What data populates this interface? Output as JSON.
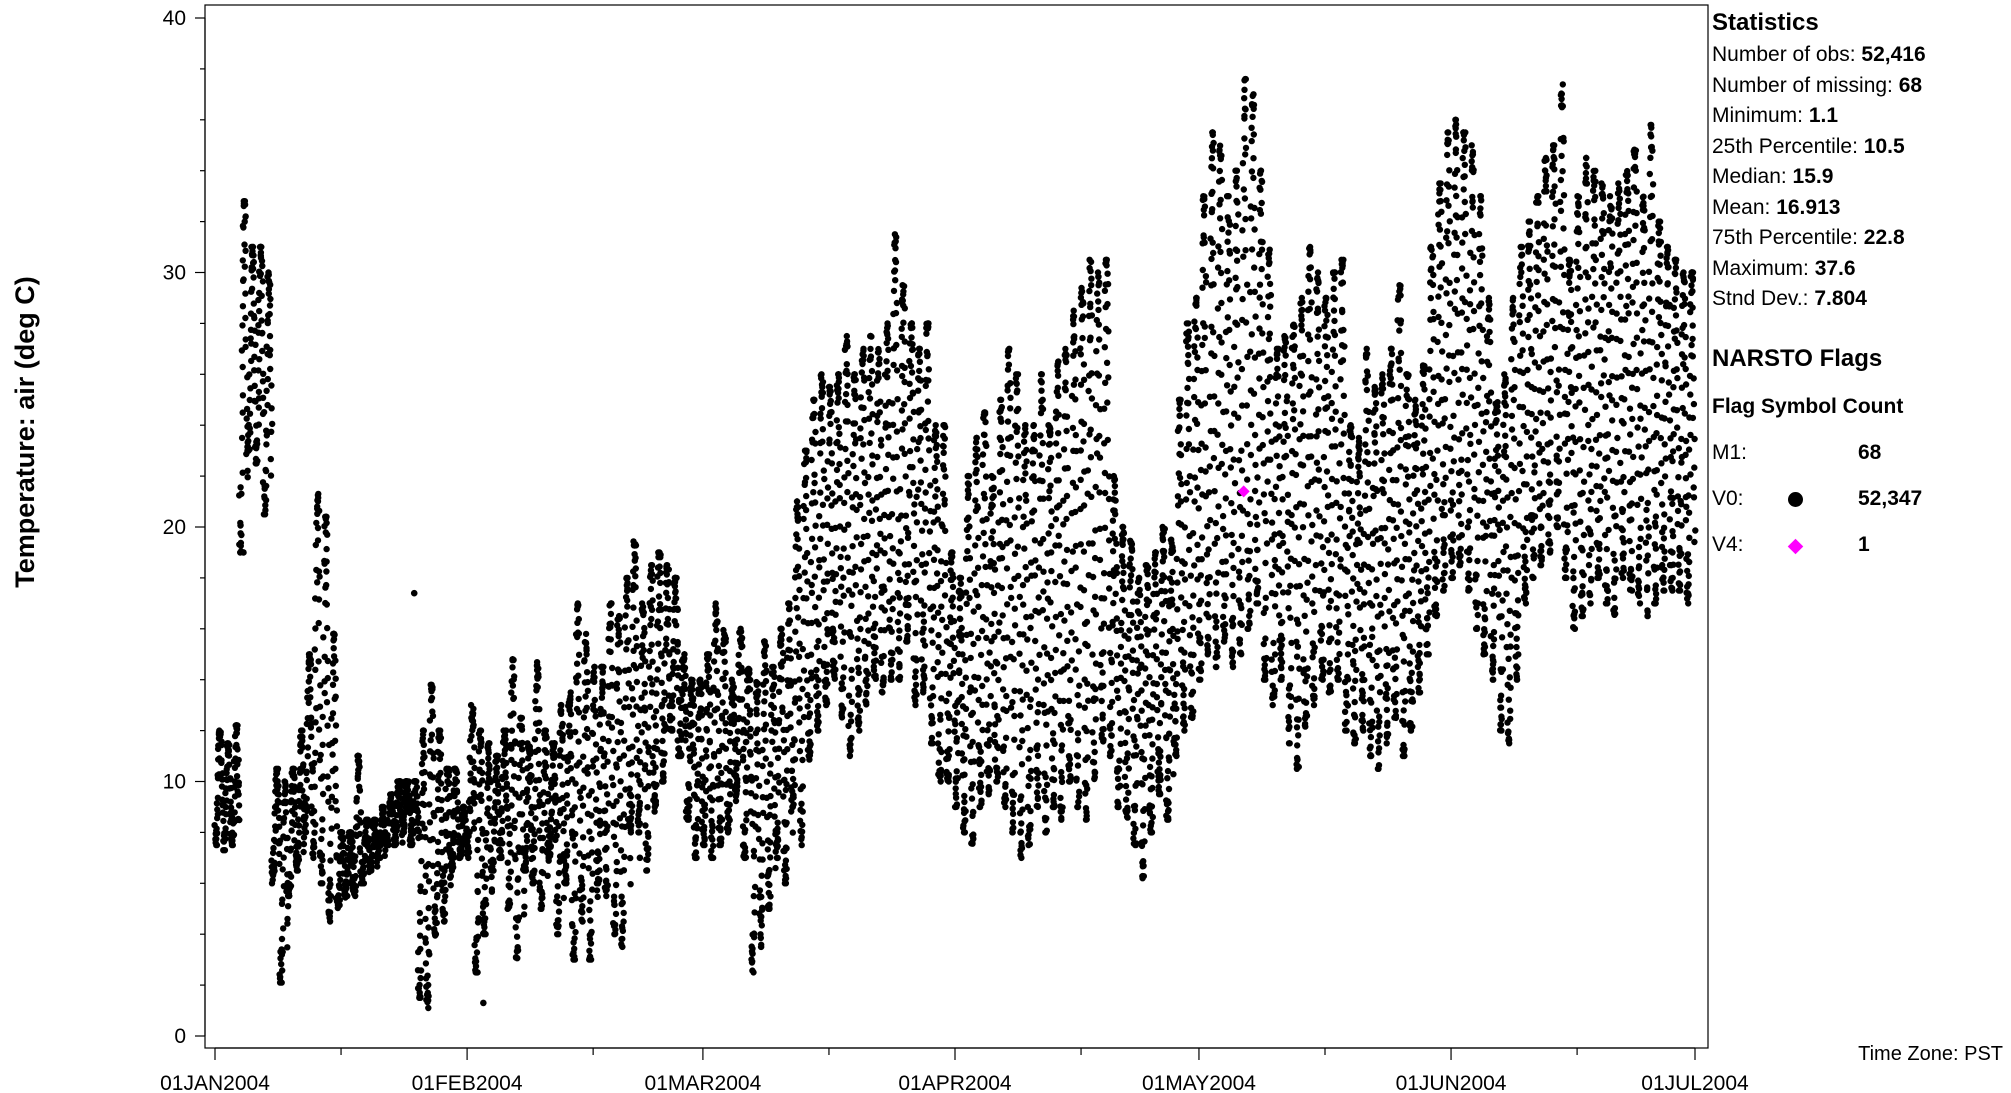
{
  "chart_data": {
    "type": "scatter",
    "title": "",
    "ylabel": "Temperature: air (deg C)",
    "xlabel": "",
    "ylim": [
      0,
      40
    ],
    "yticks": [
      0,
      10,
      20,
      30,
      40
    ],
    "xlim": [
      "2004-01-01",
      "2004-07-01"
    ],
    "xtick_labels": [
      "01JAN2004",
      "01FEB2004",
      "01MAR2004",
      "01APR2004",
      "01MAY2004",
      "01JUN2004",
      "01JUL2004"
    ],
    "grid": false,
    "legend_position": "right",
    "series": [
      {
        "name": "V0",
        "color": "#000000",
        "symbol": "dot",
        "daily_range": [
          [
            "2004-01-01",
            7.5,
            12.0
          ],
          [
            "2004-01-02",
            7.3,
            11.5
          ],
          [
            "2004-01-03",
            7.5,
            12.2
          ],
          [
            "2004-01-04",
            19.0,
            32.8
          ],
          [
            "2004-01-05",
            23.0,
            31.0
          ],
          [
            "2004-01-06",
            22.5,
            31.0
          ],
          [
            "2004-01-07",
            20.5,
            30.0
          ],
          [
            "2004-01-08",
            6.0,
            10.5
          ],
          [
            "2004-01-09",
            2.1,
            10.0
          ],
          [
            "2004-01-10",
            5.5,
            10.5
          ],
          [
            "2004-01-11",
            6.5,
            12.0
          ],
          [
            "2004-01-12",
            8.0,
            15.0
          ],
          [
            "2004-01-13",
            7.0,
            21.3
          ],
          [
            "2004-01-14",
            6.0,
            20.4
          ],
          [
            "2004-01-15",
            4.5,
            15.8
          ],
          [
            "2004-01-16",
            5.0,
            8.0
          ],
          [
            "2004-01-17",
            5.5,
            8.0
          ],
          [
            "2004-01-18",
            5.5,
            11.0
          ],
          [
            "2004-01-19",
            6.0,
            8.5
          ],
          [
            "2004-01-20",
            6.5,
            8.5
          ],
          [
            "2004-01-21",
            7.0,
            9.0
          ],
          [
            "2004-01-22",
            7.5,
            9.5
          ],
          [
            "2004-01-23",
            7.5,
            10.0
          ],
          [
            "2004-01-24",
            8.0,
            10.0
          ],
          [
            "2004-01-25",
            7.5,
            10.0
          ],
          [
            "2004-01-26",
            1.5,
            12.0
          ],
          [
            "2004-01-27",
            1.1,
            13.8
          ],
          [
            "2004-01-28",
            4.0,
            12.0
          ],
          [
            "2004-01-29",
            4.5,
            10.5
          ],
          [
            "2004-01-30",
            6.5,
            10.5
          ],
          [
            "2004-01-31",
            7.0,
            9.0
          ],
          [
            "2004-02-01",
            7.0,
            13.0
          ],
          [
            "2004-02-02",
            2.5,
            12.0
          ],
          [
            "2004-02-03",
            4.0,
            11.5
          ],
          [
            "2004-02-04",
            6.5,
            11.0
          ],
          [
            "2004-02-05",
            7.0,
            12.0
          ],
          [
            "2004-02-06",
            5.0,
            14.8
          ],
          [
            "2004-02-07",
            3.0,
            12.5
          ],
          [
            "2004-02-08",
            6.5,
            11.5
          ],
          [
            "2004-02-09",
            6.0,
            14.8
          ],
          [
            "2004-02-10",
            5.0,
            12.0
          ],
          [
            "2004-02-11",
            7.0,
            11.5
          ],
          [
            "2004-02-12",
            4.0,
            13.0
          ],
          [
            "2004-02-13",
            6.0,
            13.5
          ],
          [
            "2004-02-14",
            3.0,
            17.0
          ],
          [
            "2004-02-15",
            4.5,
            15.8
          ],
          [
            "2004-02-16",
            3.0,
            14.5
          ],
          [
            "2004-02-17",
            6.0,
            14.5
          ],
          [
            "2004-02-18",
            5.5,
            17.0
          ],
          [
            "2004-02-19",
            4.0,
            16.5
          ],
          [
            "2004-02-20",
            3.5,
            18.0
          ],
          [
            "2004-02-21",
            8.0,
            19.5
          ],
          [
            "2004-02-22",
            8.0,
            17.0
          ],
          [
            "2004-02-23",
            6.5,
            18.5
          ],
          [
            "2004-02-24",
            9.0,
            19.0
          ],
          [
            "2004-02-25",
            10.0,
            18.5
          ],
          [
            "2004-02-26",
            12.0,
            18.0
          ],
          [
            "2004-02-27",
            11.0,
            15.0
          ],
          [
            "2004-02-28",
            8.5,
            14.0
          ],
          [
            "2004-02-29",
            7.0,
            14.0
          ],
          [
            "2004-03-01",
            7.5,
            15.0
          ],
          [
            "2004-03-02",
            7.0,
            17.0
          ],
          [
            "2004-03-03",
            7.5,
            16.0
          ],
          [
            "2004-03-04",
            8.0,
            14.0
          ],
          [
            "2004-03-05",
            9.5,
            16.0
          ],
          [
            "2004-03-06",
            7.0,
            14.5
          ],
          [
            "2004-03-07",
            2.5,
            14.0
          ],
          [
            "2004-03-08",
            3.5,
            15.5
          ],
          [
            "2004-03-09",
            5.0,
            14.5
          ],
          [
            "2004-03-10",
            7.0,
            16.0
          ],
          [
            "2004-03-11",
            6.0,
            17.0
          ],
          [
            "2004-03-12",
            9.0,
            21.0
          ],
          [
            "2004-03-13",
            7.5,
            23.0
          ],
          [
            "2004-03-14",
            11.0,
            25.0
          ],
          [
            "2004-03-15",
            12.0,
            26.0
          ],
          [
            "2004-03-16",
            13.0,
            25.5
          ],
          [
            "2004-03-17",
            14.0,
            26.0
          ],
          [
            "2004-03-18",
            12.5,
            27.5
          ],
          [
            "2004-03-19",
            11.0,
            26.0
          ],
          [
            "2004-03-20",
            12.0,
            27.0
          ],
          [
            "2004-03-21",
            13.0,
            27.5
          ],
          [
            "2004-03-22",
            14.0,
            27.0
          ],
          [
            "2004-03-23",
            13.5,
            28.0
          ],
          [
            "2004-03-24",
            14.0,
            31.5
          ],
          [
            "2004-03-25",
            14.0,
            29.5
          ],
          [
            "2004-03-26",
            15.5,
            28.0
          ],
          [
            "2004-03-27",
            13.0,
            27.0
          ],
          [
            "2004-03-28",
            13.5,
            28.0
          ],
          [
            "2004-03-29",
            11.5,
            24.0
          ],
          [
            "2004-03-30",
            10.0,
            24.0
          ],
          [
            "2004-03-31",
            10.0,
            19.0
          ],
          [
            "2004-04-01",
            9.0,
            18.0
          ],
          [
            "2004-04-02",
            8.0,
            22.0
          ],
          [
            "2004-04-03",
            7.5,
            23.5
          ],
          [
            "2004-04-04",
            9.0,
            24.5
          ],
          [
            "2004-04-05",
            9.5,
            22.0
          ],
          [
            "2004-04-06",
            10.0,
            25.0
          ],
          [
            "2004-04-07",
            9.0,
            27.0
          ],
          [
            "2004-04-08",
            8.0,
            26.0
          ],
          [
            "2004-04-09",
            7.0,
            24.0
          ],
          [
            "2004-04-10",
            7.5,
            24.0
          ],
          [
            "2004-04-11",
            9.0,
            26.0
          ],
          [
            "2004-04-12",
            8.0,
            24.0
          ],
          [
            "2004-04-13",
            9.0,
            26.5
          ],
          [
            "2004-04-14",
            8.5,
            27.0
          ],
          [
            "2004-04-15",
            10.0,
            28.5
          ],
          [
            "2004-04-16",
            9.0,
            29.5
          ],
          [
            "2004-04-17",
            8.5,
            30.5
          ],
          [
            "2004-04-18",
            10.0,
            30.0
          ],
          [
            "2004-04-19",
            11.5,
            30.5
          ],
          [
            "2004-04-20",
            11.0,
            22.0
          ],
          [
            "2004-04-21",
            9.0,
            20.0
          ],
          [
            "2004-04-22",
            8.5,
            19.5
          ],
          [
            "2004-04-23",
            7.5,
            18.0
          ],
          [
            "2004-04-24",
            6.2,
            18.5
          ],
          [
            "2004-04-25",
            8.0,
            19.0
          ],
          [
            "2004-04-26",
            9.5,
            20.0
          ],
          [
            "2004-04-27",
            8.5,
            19.5
          ],
          [
            "2004-04-28",
            11.0,
            25.0
          ],
          [
            "2004-04-29",
            12.0,
            28.0
          ],
          [
            "2004-04-30",
            12.5,
            29.0
          ],
          [
            "2004-05-01",
            14.0,
            33.0
          ],
          [
            "2004-05-02",
            15.0,
            35.5
          ],
          [
            "2004-05-03",
            14.5,
            35.0
          ],
          [
            "2004-05-04",
            15.5,
            33.0
          ],
          [
            "2004-05-05",
            14.5,
            34.0
          ],
          [
            "2004-05-06",
            15.0,
            37.6
          ],
          [
            "2004-05-07",
            16.0,
            37.0
          ],
          [
            "2004-05-08",
            17.0,
            34.0
          ],
          [
            "2004-05-09",
            14.0,
            31.0
          ],
          [
            "2004-05-10",
            13.0,
            27.0
          ],
          [
            "2004-05-11",
            14.0,
            27.5
          ],
          [
            "2004-05-12",
            11.5,
            28.0
          ],
          [
            "2004-05-13",
            10.5,
            29.0
          ],
          [
            "2004-05-14",
            12.0,
            31.0
          ],
          [
            "2004-05-15",
            13.0,
            30.0
          ],
          [
            "2004-05-16",
            14.0,
            29.0
          ],
          [
            "2004-05-17",
            13.5,
            30.0
          ],
          [
            "2004-05-18",
            14.0,
            30.5
          ],
          [
            "2004-05-19",
            12.0,
            24.0
          ],
          [
            "2004-05-20",
            11.5,
            23.5
          ],
          [
            "2004-05-21",
            12.0,
            27.0
          ],
          [
            "2004-05-22",
            11.0,
            25.5
          ],
          [
            "2004-05-23",
            10.5,
            26.0
          ],
          [
            "2004-05-24",
            11.5,
            27.0
          ],
          [
            "2004-05-25",
            12.5,
            29.5
          ],
          [
            "2004-05-26",
            11.0,
            26.0
          ],
          [
            "2004-05-27",
            12.0,
            25.0
          ],
          [
            "2004-05-28",
            13.5,
            26.5
          ],
          [
            "2004-05-29",
            15.0,
            31.0
          ],
          [
            "2004-05-30",
            16.5,
            33.5
          ],
          [
            "2004-05-31",
            17.5,
            35.5
          ],
          [
            "2004-06-01",
            18.0,
            36.0
          ],
          [
            "2004-06-02",
            18.5,
            35.5
          ],
          [
            "2004-06-03",
            17.5,
            35.0
          ],
          [
            "2004-06-04",
            16.0,
            33.0
          ],
          [
            "2004-06-05",
            15.0,
            29.0
          ],
          [
            "2004-06-06",
            14.0,
            25.0
          ],
          [
            "2004-06-07",
            12.0,
            26.0
          ],
          [
            "2004-06-08",
            11.5,
            29.0
          ],
          [
            "2004-06-09",
            14.0,
            31.0
          ],
          [
            "2004-06-10",
            17.0,
            32.0
          ],
          [
            "2004-06-11",
            18.0,
            33.0
          ],
          [
            "2004-06-12",
            18.5,
            34.5
          ],
          [
            "2004-06-13",
            19.0,
            35.0
          ],
          [
            "2004-06-14",
            20.0,
            37.4
          ],
          [
            "2004-06-15",
            18.0,
            30.5
          ],
          [
            "2004-06-16",
            16.0,
            33.0
          ],
          [
            "2004-06-17",
            16.5,
            34.5
          ],
          [
            "2004-06-18",
            17.0,
            34.0
          ],
          [
            "2004-06-19",
            18.0,
            33.5
          ],
          [
            "2004-06-20",
            17.0,
            33.0
          ],
          [
            "2004-06-21",
            16.5,
            33.5
          ],
          [
            "2004-06-22",
            18.0,
            34.0
          ],
          [
            "2004-06-23",
            17.5,
            35.0
          ],
          [
            "2004-06-24",
            17.0,
            33.0
          ],
          [
            "2004-06-25",
            16.5,
            35.8
          ],
          [
            "2004-06-26",
            17.0,
            32.0
          ],
          [
            "2004-06-27",
            17.5,
            31.0
          ],
          [
            "2004-06-28",
            17.5,
            30.5
          ],
          [
            "2004-06-29",
            17.5,
            30.0
          ],
          [
            "2004-06-30",
            17.0,
            30.0
          ]
        ],
        "outliers": [
          [
            "2004-01-04T12:00",
            19.0
          ],
          [
            "2004-01-25T12:00",
            17.4
          ],
          [
            "2004-02-03T00:00",
            1.3
          ],
          [
            "2004-02-22T06:00",
            7.0
          ]
        ]
      },
      {
        "name": "V4",
        "color": "#ff00ff",
        "symbol": "diamond",
        "points": [
          [
            "2004-05-06T12:00",
            21.4
          ]
        ]
      }
    ]
  },
  "statistics": {
    "title": "Statistics",
    "items": [
      {
        "label": "Number of obs: ",
        "value": "52,416"
      },
      {
        "label": "Number of missing: ",
        "value": "68"
      },
      {
        "label": "Minimum: ",
        "value": "1.1"
      },
      {
        "label": "25th Percentile: ",
        "value": "10.5"
      },
      {
        "label": "Median: ",
        "value": "15.9"
      },
      {
        "label": "Mean: ",
        "value": "16.913"
      },
      {
        "label": "75th Percentile: ",
        "value": "22.8"
      },
      {
        "label": "Maximum: ",
        "value": "37.6"
      },
      {
        "label": "Stnd Dev.: ",
        "value": "7.804"
      }
    ]
  },
  "flags": {
    "title": "NARSTO Flags",
    "header": "Flag Symbol Count",
    "rows": [
      {
        "code": "M1:",
        "symbol": "none",
        "count": "68"
      },
      {
        "code": "V0:",
        "symbol": "dot",
        "count": "52,347"
      },
      {
        "code": "V4:",
        "symbol": "diamond",
        "count": "1"
      }
    ]
  },
  "footnote": "Time Zone: PST"
}
